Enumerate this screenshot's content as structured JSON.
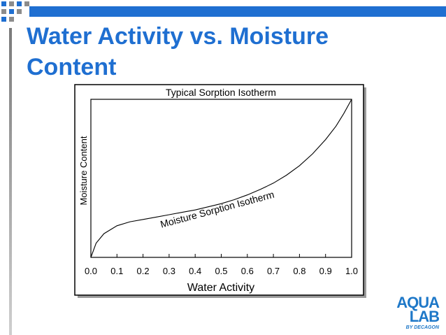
{
  "slide": {
    "title": "Water Activity vs. Moisture Content",
    "theme_color": "#1f6fd1"
  },
  "logo": {
    "line1": "AQUA",
    "line2": "LAB",
    "byline": "BY DECAGON",
    "color": "#1e78c8"
  },
  "chart_data": {
    "type": "line",
    "title": "Typical Sorption Isotherm",
    "xlabel": "Water Activity",
    "ylabel": "Moisture Content",
    "xlim": [
      0,
      1
    ],
    "x_ticks": [
      "0.0",
      "0.1",
      "0.2",
      "0.3",
      "0.4",
      "0.5",
      "0.6",
      "0.7",
      "0.8",
      "0.9",
      "1.0"
    ],
    "y_ticks": [],
    "grid": false,
    "legend": "none",
    "annotations": [
      {
        "text": "Moisture Sorption Isotherm",
        "position": "along the curve, mid-chart"
      }
    ],
    "series": [
      {
        "color": "#000000",
        "points": [
          [
            0.0,
            0.0
          ],
          [
            0.02,
            0.09
          ],
          [
            0.05,
            0.15
          ],
          [
            0.1,
            0.2
          ],
          [
            0.15,
            0.225
          ],
          [
            0.2,
            0.24
          ],
          [
            0.25,
            0.255
          ],
          [
            0.3,
            0.27
          ],
          [
            0.35,
            0.285
          ],
          [
            0.4,
            0.3
          ],
          [
            0.45,
            0.32
          ],
          [
            0.5,
            0.34
          ],
          [
            0.55,
            0.365
          ],
          [
            0.6,
            0.395
          ],
          [
            0.65,
            0.43
          ],
          [
            0.7,
            0.47
          ],
          [
            0.75,
            0.52
          ],
          [
            0.8,
            0.58
          ],
          [
            0.85,
            0.655
          ],
          [
            0.9,
            0.745
          ],
          [
            0.94,
            0.83
          ],
          [
            0.97,
            0.91
          ],
          [
            1.0,
            1.0
          ]
        ]
      }
    ]
  }
}
